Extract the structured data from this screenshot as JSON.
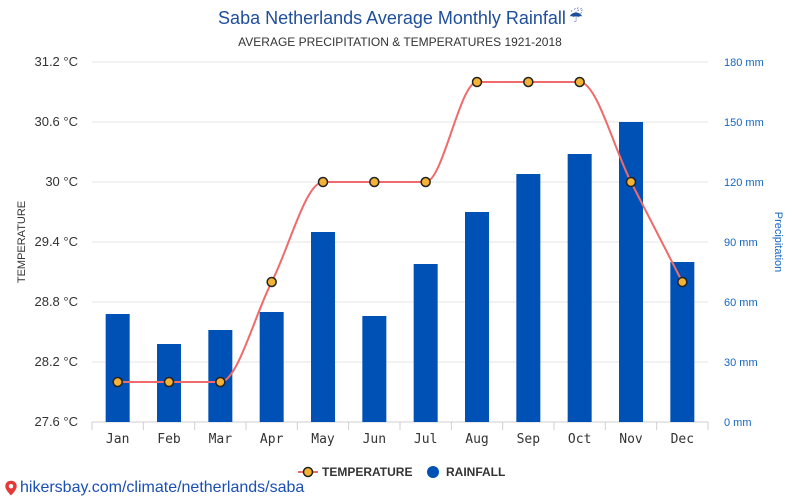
{
  "title": "Saba Netherlands Average Monthly Rainfall",
  "title_icon": "umbrella-rain-icon",
  "title_icon_glyph": "☔",
  "subtitle": "AVERAGE PRECIPITATION & TEMPERATURES 1921-2018",
  "footer": {
    "link_text": "hikersbay.com/climate/netherlands/saba",
    "icon": "location-pin-icon"
  },
  "legend": {
    "temperature": "TEMPERATURE",
    "rainfall": "RAINFALL"
  },
  "colors": {
    "bar": "#0051b5",
    "line": "#ef6b6b",
    "marker_fill": "#f5b335",
    "marker_stroke": "#222222",
    "grid": "#e6e6e6",
    "title": "#1f4e9c",
    "right_axis": "#1565c0"
  },
  "chart_data": {
    "type": "bar+line",
    "title": "Saba Netherlands Average Monthly Rainfall",
    "subtitle": "AVERAGE PRECIPITATION & TEMPERATURES 1921-2018",
    "categories": [
      "Jan",
      "Feb",
      "Mar",
      "Apr",
      "May",
      "Jun",
      "Jul",
      "Aug",
      "Sep",
      "Oct",
      "Nov",
      "Dec"
    ],
    "ylabel_left": "TEMPERATURE",
    "ylabel_right": "Precipitation",
    "left_axis": {
      "ylim": [
        27.6,
        31.2
      ],
      "ticks": [
        27.6,
        28.2,
        28.8,
        29.4,
        30,
        30.6,
        31.2
      ],
      "tick_labels": [
        "27.6 °C",
        "28.2 °C",
        "28.8 °C",
        "29.4 °C",
        "30 °C",
        "30.6 °C",
        "31.2 °C"
      ]
    },
    "right_axis": {
      "ylim": [
        0,
        180
      ],
      "ticks": [
        0,
        30,
        60,
        90,
        120,
        150,
        180
      ],
      "tick_labels": [
        "0 mm",
        "30 mm",
        "60 mm",
        "90 mm",
        "120 mm",
        "150 mm",
        "180 mm"
      ]
    },
    "series": [
      {
        "name": "RAINFALL",
        "type": "bar",
        "axis": "right",
        "values": [
          54,
          39,
          46,
          55,
          95,
          53,
          79,
          105,
          124,
          134,
          150,
          80
        ]
      },
      {
        "name": "TEMPERATURE",
        "type": "line",
        "axis": "left",
        "values": [
          28,
          28,
          28,
          29,
          30,
          30,
          30,
          31,
          31,
          31,
          30,
          29
        ]
      }
    ],
    "grid": true,
    "legend_position": "bottom"
  }
}
